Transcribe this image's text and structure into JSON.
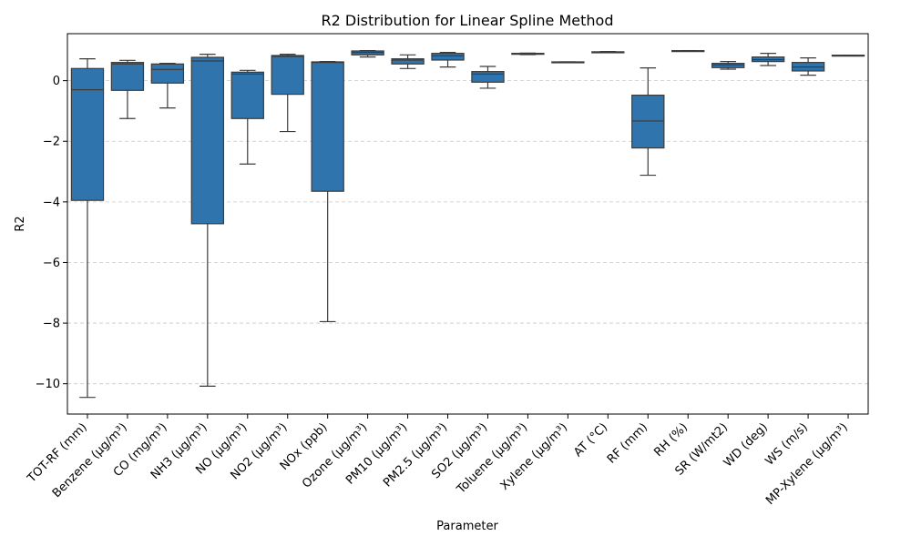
{
  "chart_data": {
    "type": "box",
    "title": "R2 Distribution for Linear Spline Method",
    "xlabel": "Parameter",
    "ylabel": "R2",
    "ylim": [
      -11,
      1.55
    ],
    "yticks": [
      0,
      -2,
      -4,
      -6,
      -8,
      -10
    ],
    "ytick_labels": [
      "0",
      "−2",
      "−4",
      "−6",
      "−8",
      "−10"
    ],
    "grid": "y-dashed",
    "box_color": "#2f74ad",
    "line_color": "#3b3b3b",
    "categories": [
      "TOT-RF (mm)",
      "Benzene (µg/m³)",
      "CO (mg/m³)",
      "NH3 (µg/m³)",
      "NO (µg/m³)",
      "NO2 (µg/m³)",
      "NOx (ppb)",
      "Ozone (µg/m³)",
      "PM10 (µg/m³)",
      "PM2.5 (µg/m³)",
      "SO2 (µg/m³)",
      "Toluene (µg/m³)",
      "Xylene (µg/m³)",
      "AT (°C)",
      "RF (mm)",
      "RH (%)",
      "SR (W/mt2)",
      "WD (deg)",
      "WS (m/s)",
      "MP-Xylene (µg/m³)"
    ],
    "boxes": [
      {
        "min": -10.45,
        "q1": -3.95,
        "median": -0.3,
        "q3": 0.4,
        "max": 0.72
      },
      {
        "min": -1.25,
        "q1": -0.32,
        "median": 0.55,
        "q3": 0.6,
        "max": 0.67
      },
      {
        "min": -0.9,
        "q1": -0.08,
        "median": 0.37,
        "q3": 0.55,
        "max": 0.57
      },
      {
        "min": -10.08,
        "q1": -4.72,
        "median": 0.65,
        "q3": 0.77,
        "max": 0.87
      },
      {
        "min": -2.75,
        "q1": -1.25,
        "median": 0.22,
        "q3": 0.28,
        "max": 0.34
      },
      {
        "min": -1.68,
        "q1": -0.45,
        "median": 0.8,
        "q3": 0.83,
        "max": 0.87
      },
      {
        "min": -7.95,
        "q1": -3.65,
        "median": 0.6,
        "q3": 0.62,
        "max": 0.63
      },
      {
        "min": 0.78,
        "q1": 0.85,
        "median": 0.93,
        "q3": 0.98,
        "max": 0.99
      },
      {
        "min": 0.4,
        "q1": 0.55,
        "median": 0.68,
        "q3": 0.72,
        "max": 0.85
      },
      {
        "min": 0.45,
        "q1": 0.68,
        "median": 0.82,
        "q3": 0.9,
        "max": 0.93
      },
      {
        "min": -0.25,
        "q1": -0.05,
        "median": 0.22,
        "q3": 0.3,
        "max": 0.47
      },
      {
        "min": 0.86,
        "q1": 0.87,
        "median": 0.89,
        "q3": 0.9,
        "max": 0.91
      },
      {
        "min": 0.6,
        "q1": 0.61,
        "median": 0.61,
        "q3": 0.62,
        "max": 0.62
      },
      {
        "min": 0.93,
        "q1": 0.94,
        "median": 0.95,
        "q3": 0.95,
        "max": 0.96
      },
      {
        "min": -3.12,
        "q1": -2.22,
        "median": -1.33,
        "q3": -0.48,
        "max": 0.42
      },
      {
        "min": 0.97,
        "q1": 0.98,
        "median": 0.98,
        "q3": 0.99,
        "max": 0.99
      },
      {
        "min": 0.38,
        "q1": 0.43,
        "median": 0.52,
        "q3": 0.57,
        "max": 0.63
      },
      {
        "min": 0.5,
        "q1": 0.63,
        "median": 0.69,
        "q3": 0.78,
        "max": 0.9
      },
      {
        "min": 0.18,
        "q1": 0.32,
        "median": 0.45,
        "q3": 0.6,
        "max": 0.75
      },
      {
        "min": 0.82,
        "q1": 0.83,
        "median": 0.83,
        "q3": 0.84,
        "max": 0.84
      }
    ]
  }
}
